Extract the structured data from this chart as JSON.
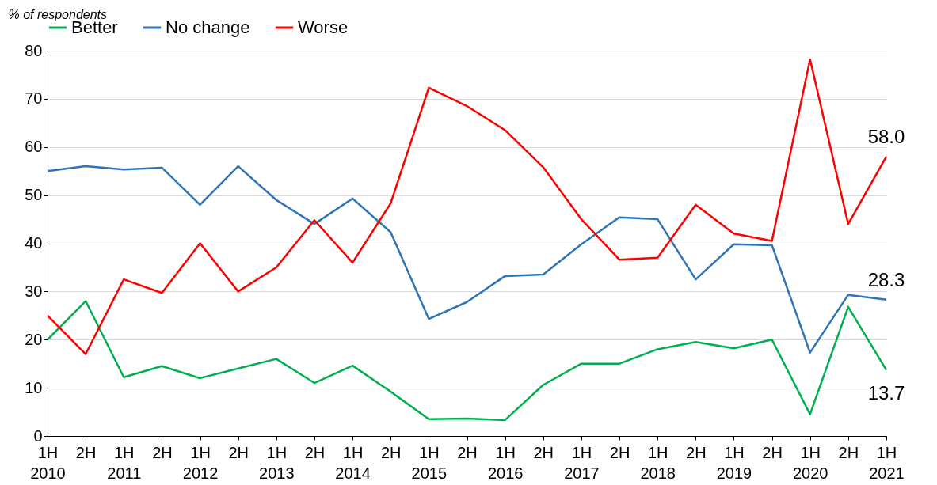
{
  "chart_data": {
    "type": "line",
    "ylabel": "% of respondents",
    "categories": [
      "1H 2010",
      "2H",
      "1H 2011",
      "2H",
      "1H 2012",
      "2H",
      "1H 2013",
      "2H",
      "1H 2014",
      "2H",
      "1H 2015",
      "2H",
      "1H 2016",
      "2H",
      "1H 2017",
      "2H",
      "1H 2018",
      "2H",
      "1H 2019",
      "2H",
      "1H 2020",
      "2H",
      "1H 2021"
    ],
    "series": [
      {
        "name": "Better",
        "color": "#00b050",
        "values": [
          20,
          28,
          12.2,
          14.5,
          12,
          14,
          16,
          11,
          14.6,
          9.2,
          3.5,
          3.6,
          3.3,
          10.6,
          15,
          15,
          18,
          19.5,
          18.2,
          20,
          4.5,
          26.8,
          13.7
        ],
        "value_labels": [
          null,
          null,
          null,
          null,
          null,
          null,
          null,
          null,
          null,
          null,
          null,
          null,
          null,
          null,
          null,
          null,
          null,
          null,
          null,
          null,
          null,
          null,
          "13.7"
        ]
      },
      {
        "name": "No change",
        "color": "#2e75b6",
        "values": [
          55,
          56,
          55.3,
          55.7,
          48,
          56,
          49,
          44,
          49.3,
          42.3,
          24.3,
          27.8,
          33.2,
          33.5,
          39.8,
          45.4,
          45,
          32.5,
          39.8,
          39.6,
          17.3,
          29.3,
          28.3
        ],
        "value_labels": [
          null,
          null,
          null,
          null,
          null,
          null,
          null,
          null,
          null,
          null,
          null,
          null,
          null,
          null,
          null,
          null,
          null,
          null,
          null,
          null,
          null,
          null,
          "28.3"
        ]
      },
      {
        "name": "Worse",
        "color": "#ff0000",
        "values": [
          25,
          17,
          32.5,
          29.7,
          40,
          30,
          35,
          44.8,
          36,
          48.3,
          72.3,
          68.5,
          63.5,
          55.8,
          45,
          36.6,
          37,
          48,
          42,
          40.5,
          78.2,
          44,
          58.0
        ],
        "value_labels": [
          null,
          null,
          null,
          null,
          null,
          null,
          null,
          null,
          null,
          null,
          null,
          null,
          null,
          null,
          null,
          null,
          null,
          null,
          null,
          null,
          null,
          null,
          "58.0"
        ]
      }
    ],
    "ylim": [
      0,
      80
    ],
    "yticks": [
      0,
      10,
      20,
      30,
      40,
      50,
      60,
      70,
      80
    ],
    "grid": "y",
    "legend": "top"
  }
}
